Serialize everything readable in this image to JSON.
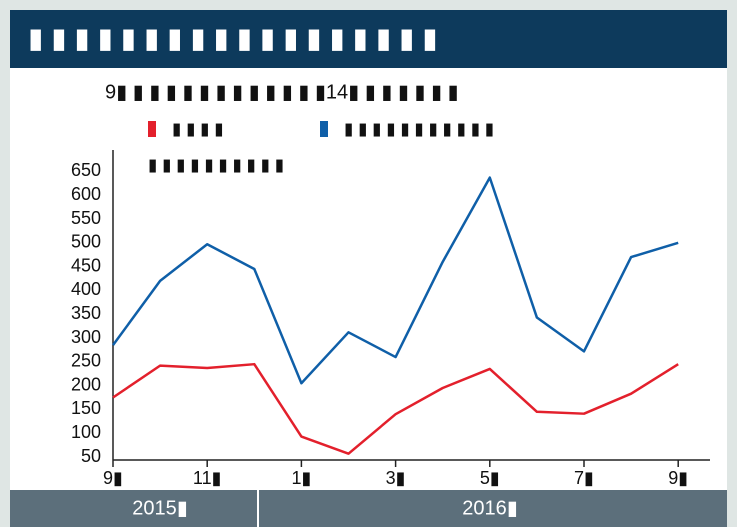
{
  "chart_data": {
    "type": "line",
    "title": "▮ ▮ ▮ ▮ ▮ ▮ ▮ ▮ ▮ ▮ ▮ ▮ ▮ ▮ ▮ ▮ ▮ ▮",
    "subtitle": "9▮ ▮ ▮ ▮ ▮ ▮ ▮ ▮ ▮ ▮ ▮ ▮ ▮14▮ ▮ ▮ ▮ ▮ ▮ ▮",
    "note": "▮ ▮ ▮ ▮ ▮ ▮ ▮ ▮ ▮ ▮",
    "categories": [
      "9▮",
      null,
      "11▮",
      null,
      "1▮",
      null,
      "3▮",
      null,
      "5▮",
      null,
      "7▮",
      null,
      "9▮"
    ],
    "year_groups": [
      "2015▮",
      "2016▮"
    ],
    "series": [
      {
        "name": "▮ ▮ ▮ ▮",
        "color": "#e3202c",
        "values": [
          175,
          242,
          237,
          245,
          93,
          57,
          140,
          195,
          235,
          145,
          141,
          183,
          245
        ]
      },
      {
        "name": "▮ ▮ ▮ ▮ ▮ ▮ ▮ ▮ ▮ ▮ ▮",
        "color": "#0f5fa8",
        "values": [
          285,
          420,
          497,
          445,
          205,
          312,
          260,
          460,
          637,
          343,
          272,
          470,
          500
        ]
      }
    ],
    "ylim": [
      50,
      695
    ],
    "yticks": [
      50,
      100,
      150,
      200,
      250,
      300,
      350,
      400,
      450,
      500,
      550,
      600,
      650
    ],
    "grid": false
  }
}
